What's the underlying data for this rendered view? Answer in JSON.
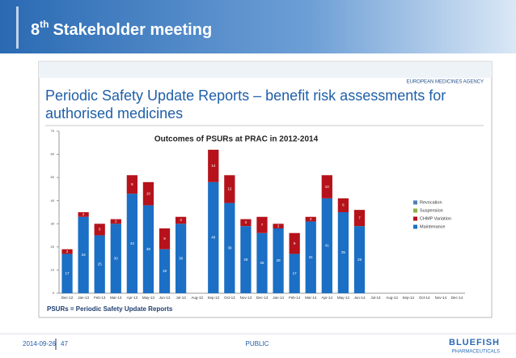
{
  "slide": {
    "title_number": "8",
    "title_suffix": "th",
    "title_rest": "Stakeholder meeting",
    "heading_line1": "Periodic Safety Update Reports – benefit risk assessments for",
    "heading_line2": "authorised medicines",
    "agency": "EUROPEAN MEDICINES AGENCY",
    "note": "PSURs = Periodic Safety Update Reports",
    "date": "2014-09-26",
    "page": "47",
    "classification": "PUBLIC",
    "logo": "BLUEFISH",
    "logo_sub": "PHARMACEUTICALS"
  },
  "chart_data": {
    "type": "stacked_bar",
    "title": "Outcomes of PSURs at PRAC in 2012-2014",
    "categories": [
      "Dec-12",
      "Jan-13",
      "Feb-13",
      "Mar-13",
      "Apr-13",
      "May-13",
      "Jun-13",
      "Jul-13",
      "Aug-13",
      "Sep-13",
      "Oct-13",
      "Nov-13",
      "Dec-13",
      "Jan-14",
      "Feb-14",
      "Mar-14",
      "Apr-14",
      "May-14",
      "Jun-14",
      "Jul-14",
      "Aug-14",
      "Sep-14",
      "Oct-14",
      "Nov-14",
      "Dec-14"
    ],
    "series": [
      {
        "name": "Revocation",
        "color": "#4f7fb8",
        "values": [
          null,
          null,
          null,
          null,
          null,
          null,
          null,
          null,
          null,
          null,
          null,
          null,
          null,
          null,
          null,
          null,
          null,
          null,
          null,
          null,
          null,
          null,
          null,
          null,
          null
        ]
      },
      {
        "name": "Suspension",
        "color": "#8db04a",
        "values": [
          null,
          null,
          null,
          null,
          null,
          null,
          null,
          null,
          null,
          null,
          null,
          null,
          null,
          null,
          null,
          null,
          null,
          null,
          null,
          null,
          null,
          null,
          null,
          null,
          null
        ]
      },
      {
        "name": "CHMP Variation",
        "color": "#b5121b",
        "values": [
          2,
          2,
          5,
          2,
          8,
          10,
          9,
          3,
          null,
          14,
          12,
          3,
          7,
          2,
          9,
          2,
          10,
          6,
          7,
          null,
          null,
          null,
          null,
          null,
          null
        ]
      },
      {
        "name": "Maintenance",
        "color": "#1b6fc4",
        "values": [
          17,
          33,
          25,
          30,
          43,
          38,
          19,
          30,
          null,
          48,
          39,
          29,
          26,
          28,
          17,
          31,
          41,
          35,
          29,
          null,
          null,
          null,
          null,
          null,
          null
        ]
      }
    ],
    "ylim": [
      0,
      70
    ],
    "yticks": [
      0,
      10,
      20,
      30,
      40,
      50,
      60,
      70
    ],
    "legend": "right"
  }
}
